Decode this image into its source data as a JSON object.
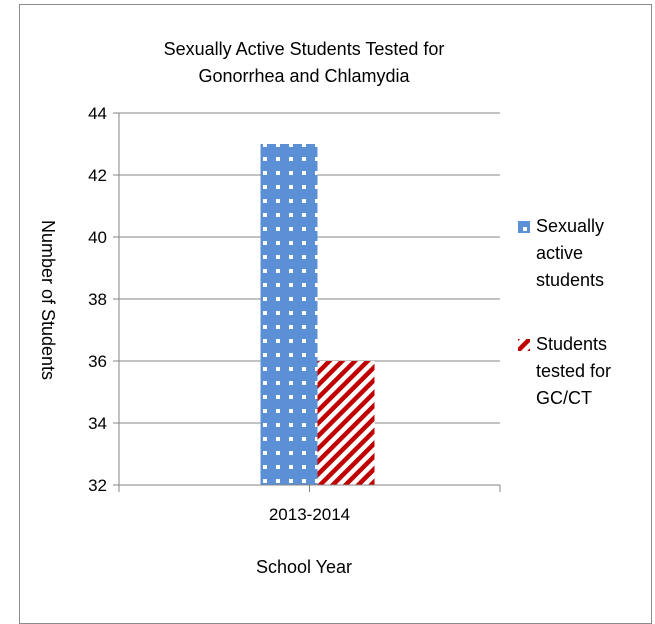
{
  "chart_data": {
    "type": "bar",
    "title_lines": [
      "Sexually Active Students Tested for",
      "Gonorrhea and Chlamydia"
    ],
    "xlabel": "School Year",
    "ylabel": "Number of Students",
    "categories": [
      "2013-2014"
    ],
    "series": [
      {
        "name_lines": [
          "Sexually",
          "active",
          "students"
        ],
        "values": [
          43
        ],
        "color": "#5b8fd6",
        "pattern": "white dots"
      },
      {
        "name_lines": [
          "Students",
          "tested for",
          "GC/CT"
        ],
        "values": [
          36
        ],
        "color": "#c00000",
        "pattern": "diagonal stripes"
      }
    ],
    "ylim": [
      32,
      44
    ],
    "yticks": [
      "32",
      "34",
      "36",
      "38",
      "40",
      "42",
      "44"
    ],
    "grid": true,
    "legend": "right"
  }
}
